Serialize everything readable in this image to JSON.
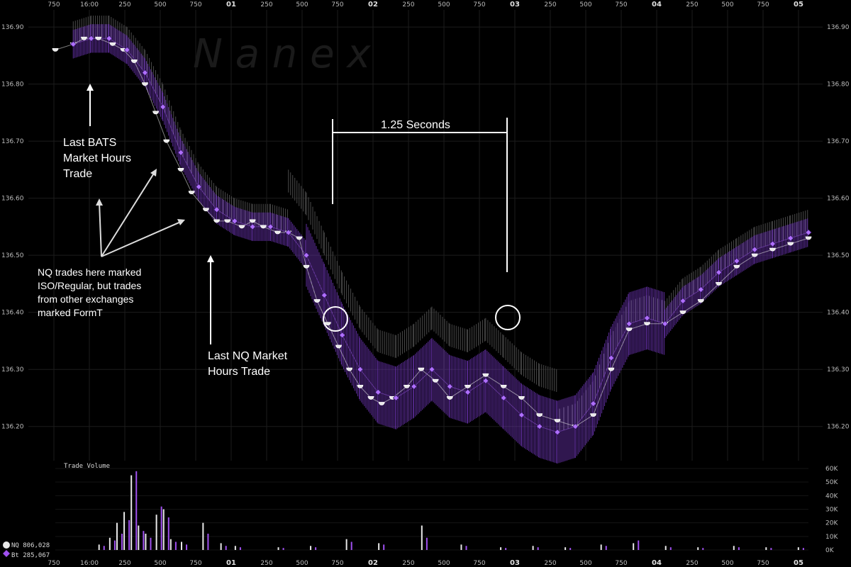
{
  "watermark": "N a n e x",
  "legend": {
    "nq_label": "NQ 806,028",
    "bt_label": "Bt 285,067",
    "nq_color": "#e8e8e8",
    "bt_color": "#a050f0"
  },
  "volume_title": "Trade Volume",
  "annotations": {
    "bats_line1": "Last BATS",
    "bats_line2": "Market Hours",
    "bats_line3": "Trade",
    "nq_line1": "Last NQ Market",
    "nq_line2": "Hours Trade",
    "iso_line1": "NQ trades here marked",
    "iso_line2": "ISO/Regular, but trades",
    "iso_line3": "from other exchanges",
    "iso_line4": "marked FormT",
    "span_label": "1.25 Seconds"
  },
  "colors": {
    "background": "#000000",
    "grid": "#1c1c1c",
    "nq": "#e8e8e8",
    "bats": "#8a4fd0",
    "bats_dark": "#6a34b0",
    "nbbo": "#4a4a4a",
    "annotation": "#ffffff"
  },
  "chart_data": [
    {
      "type": "line",
      "title": "",
      "xlabel": "",
      "ylabel": "",
      "ylim": [
        136.14,
        136.93
      ],
      "y_ticks": [
        "136.90",
        "136.80",
        "136.70",
        "136.60",
        "136.50",
        "136.40",
        "136.30",
        "136.20"
      ],
      "x_ticks": [
        "750",
        "16:00",
        "250",
        "500",
        "750",
        "01",
        "250",
        "500",
        "750",
        "02",
        "250",
        "500",
        "750",
        "03",
        "250",
        "500",
        "750",
        "04",
        "250",
        "500",
        "750",
        "05"
      ],
      "grid": true,
      "legend": "bottom-left",
      "series": [
        {
          "name": "NQ",
          "x": [
            0.0,
            0.5,
            0.8,
            1.2,
            1.6,
            1.9,
            2.2,
            2.5,
            2.8,
            3.1,
            3.5,
            3.8,
            4.2,
            4.5,
            4.8,
            5.2,
            5.5,
            5.8,
            6.2,
            6.5,
            6.8,
            7.0,
            7.3,
            7.6,
            7.9,
            8.2,
            8.5,
            8.8,
            9.1,
            9.4,
            9.8,
            10.2,
            10.6,
            11.0,
            11.5,
            12.0,
            12.5,
            13.0,
            13.5,
            14.0,
            14.5,
            15.0,
            15.5,
            16.0,
            16.5,
            17.0,
            17.5,
            18.0,
            18.5,
            19.0,
            19.5,
            20.0,
            20.5,
            21.0
          ],
          "values": [
            136.86,
            136.87,
            136.88,
            136.88,
            136.87,
            136.86,
            136.84,
            136.8,
            136.75,
            136.7,
            136.65,
            136.61,
            136.58,
            136.56,
            136.56,
            136.55,
            136.56,
            136.55,
            136.54,
            136.54,
            136.53,
            136.48,
            136.42,
            136.38,
            136.34,
            136.3,
            136.27,
            136.25,
            136.24,
            136.25,
            136.27,
            136.3,
            136.28,
            136.25,
            136.27,
            136.29,
            136.27,
            136.25,
            136.22,
            136.21,
            136.2,
            136.22,
            136.3,
            136.37,
            136.38,
            136.38,
            136.4,
            136.42,
            136.45,
            136.48,
            136.5,
            136.51,
            136.52,
            136.53
          ]
        },
        {
          "name": "Bt",
          "x": [
            0.5,
            1.0,
            1.5,
            2.0,
            2.5,
            3.0,
            3.5,
            4.0,
            4.5,
            5.0,
            5.5,
            6.0,
            6.5,
            7.0,
            7.5,
            8.0,
            8.5,
            9.0,
            9.5,
            10.0,
            10.5,
            11.0,
            11.5,
            12.0,
            12.5,
            13.0,
            13.5,
            14.0,
            14.5,
            15.0,
            15.5,
            16.0,
            16.5,
            17.0,
            17.5,
            18.0,
            18.5,
            19.0,
            19.5,
            20.0,
            20.5,
            21.0
          ],
          "values": [
            136.87,
            136.88,
            136.88,
            136.86,
            136.82,
            136.76,
            136.68,
            136.62,
            136.58,
            136.56,
            136.55,
            136.55,
            136.54,
            136.5,
            136.43,
            136.36,
            136.3,
            136.26,
            136.25,
            136.27,
            136.3,
            136.27,
            136.26,
            136.28,
            136.25,
            136.22,
            136.2,
            136.19,
            136.2,
            136.24,
            136.32,
            136.38,
            136.39,
            136.38,
            136.42,
            136.44,
            136.47,
            136.49,
            136.51,
            136.52,
            136.53,
            136.54
          ]
        }
      ]
    },
    {
      "type": "bar",
      "title": "Trade Volume",
      "ylim": [
        0,
        60000
      ],
      "y_ticks": [
        "60K",
        "50K",
        "40K",
        "30K",
        "20K",
        "10K",
        "0K"
      ],
      "series": [
        {
          "name": "NQ",
          "x": [
            1.2,
            1.5,
            1.7,
            1.9,
            2.1,
            2.3,
            2.5,
            2.8,
            3.0,
            3.2,
            3.5,
            4.1,
            4.6,
            5.0,
            6.2,
            7.1,
            8.1,
            9.0,
            10.2,
            11.3,
            12.4,
            13.3,
            14.2,
            15.2,
            16.1,
            17.0,
            17.9,
            18.9,
            19.8,
            20.7
          ],
          "values": [
            4000,
            9000,
            20000,
            28000,
            55000,
            18000,
            12000,
            26000,
            30000,
            8000,
            6000,
            20000,
            5000,
            3000,
            2000,
            3000,
            8000,
            5000,
            18000,
            4000,
            2000,
            3000,
            2000,
            4000,
            5000,
            3000,
            2000,
            3000,
            2000,
            2000
          ]
        },
        {
          "name": "Bt",
          "x": [
            1.3,
            1.6,
            1.8,
            2.0,
            2.2,
            2.4,
            2.6,
            2.9,
            3.1,
            3.3,
            3.6,
            4.2,
            4.7,
            5.1,
            6.3,
            7.2,
            8.2,
            9.1,
            10.3,
            11.4,
            12.5,
            13.4,
            14.3,
            15.3,
            16.2,
            17.1,
            18.0,
            19.0,
            19.9,
            20.8
          ],
          "values": [
            3000,
            7000,
            12000,
            22000,
            58000,
            14000,
            9000,
            32000,
            24000,
            6000,
            4000,
            12000,
            3000,
            2000,
            1500,
            2000,
            6000,
            4000,
            9000,
            3000,
            1500,
            2000,
            1500,
            3000,
            7000,
            2000,
            1500,
            2000,
            1500,
            1500
          ]
        }
      ]
    }
  ]
}
